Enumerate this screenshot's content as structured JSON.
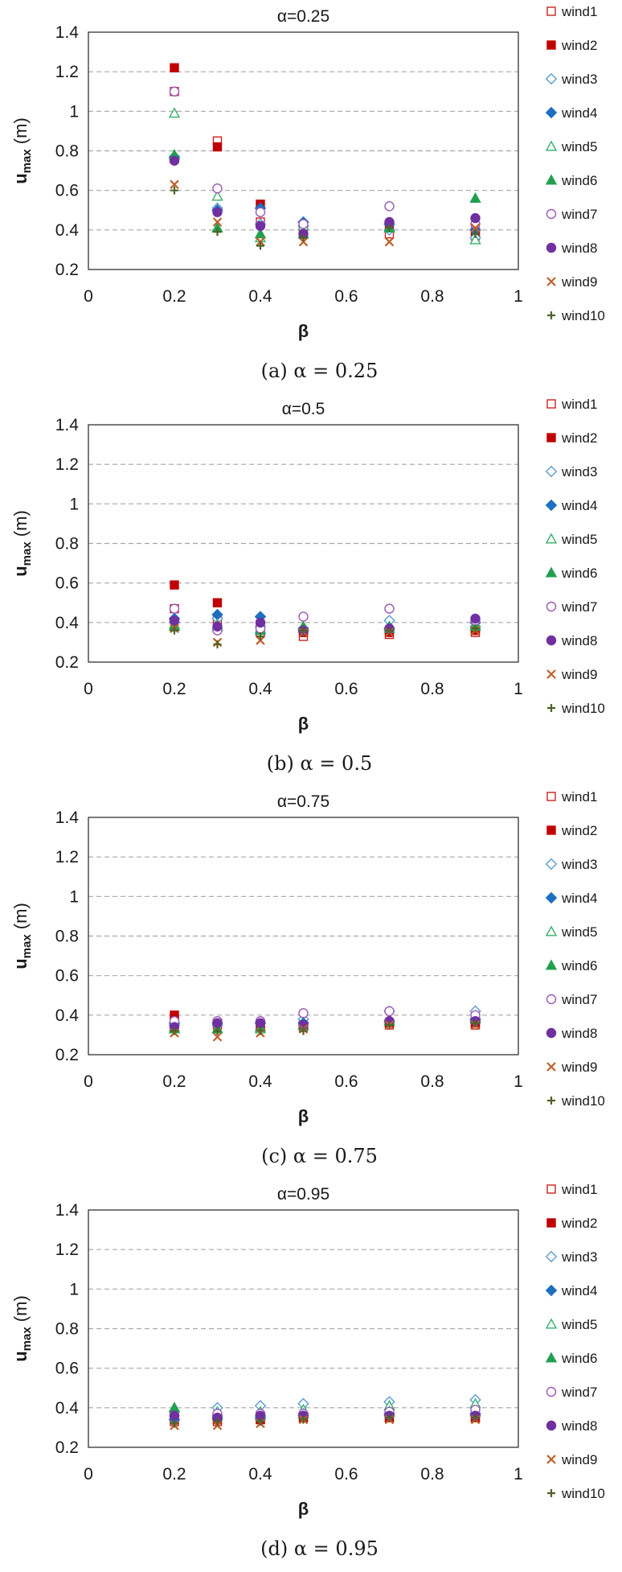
{
  "chart_data": [
    {
      "type": "scatter",
      "title": "α=0.25",
      "caption": "(a) α = 0.25",
      "xlabel": "β",
      "ylabel": "u",
      "ylabel_sub": "max",
      "ylabel_unit": " (m)",
      "xlim": [
        0,
        1
      ],
      "ylim": [
        0.2,
        1.4
      ],
      "xticks": [
        0,
        0.2,
        0.4,
        0.6,
        0.8,
        1
      ],
      "xtick_labels": [
        "0",
        "0.2",
        "0.4",
        "0.6",
        "0.8",
        "1"
      ],
      "yticks": [
        0.2,
        0.4,
        0.6,
        0.8,
        1.0,
        1.2,
        1.4
      ],
      "ytick_labels": [
        "0.2",
        "0.4",
        "0.6",
        "0.8",
        "1",
        "1.2",
        "1.4"
      ],
      "x": [
        0.2,
        0.3,
        0.4,
        0.5,
        0.7,
        0.9
      ],
      "series": [
        {
          "name": "wind1",
          "values": [
            1.1,
            0.85,
            0.44,
            0.4,
            0.38,
            0.37
          ]
        },
        {
          "name": "wind2",
          "values": [
            1.22,
            0.82,
            0.53,
            0.42,
            0.42,
            0.39
          ]
        },
        {
          "name": "wind3",
          "values": [
            0.76,
            0.51,
            0.43,
            0.42,
            0.4,
            0.36
          ]
        },
        {
          "name": "wind4",
          "values": [
            0.77,
            0.5,
            0.51,
            0.44,
            0.43,
            0.4
          ]
        },
        {
          "name": "wind5",
          "values": [
            0.99,
            0.57,
            0.36,
            0.42,
            0.41,
            0.35
          ]
        },
        {
          "name": "wind6",
          "values": [
            0.78,
            0.41,
            0.38,
            0.38,
            0.41,
            0.56
          ]
        },
        {
          "name": "wind7",
          "values": [
            1.1,
            0.61,
            0.49,
            0.43,
            0.52,
            0.43
          ]
        },
        {
          "name": "wind8",
          "values": [
            0.75,
            0.49,
            0.42,
            0.38,
            0.44,
            0.46
          ]
        },
        {
          "name": "wind9",
          "values": [
            0.63,
            0.44,
            0.34,
            0.34,
            0.34,
            0.41
          ]
        },
        {
          "name": "wind10",
          "values": [
            0.6,
            0.39,
            0.32,
            0.36,
            0.41,
            0.38
          ]
        }
      ]
    },
    {
      "type": "scatter",
      "title": "α=0.5",
      "caption": "(b) α = 0.5",
      "xlabel": "β",
      "ylabel": "u",
      "ylabel_sub": "max",
      "ylabel_unit": " (m)",
      "xlim": [
        0,
        1
      ],
      "ylim": [
        0.2,
        1.4
      ],
      "xticks": [
        0,
        0.2,
        0.4,
        0.6,
        0.8,
        1
      ],
      "xtick_labels": [
        "0",
        "0.2",
        "0.4",
        "0.6",
        "0.8",
        "1"
      ],
      "yticks": [
        0.2,
        0.4,
        0.6,
        0.8,
        1.0,
        1.2,
        1.4
      ],
      "ytick_labels": [
        "0.2",
        "0.4",
        "0.6",
        "0.8",
        "1",
        "1.2",
        "1.4"
      ],
      "x": [
        0.2,
        0.3,
        0.4,
        0.5,
        0.7,
        0.9
      ],
      "series": [
        {
          "name": "wind1",
          "values": [
            0.47,
            0.41,
            0.35,
            0.33,
            0.34,
            0.35
          ]
        },
        {
          "name": "wind2",
          "values": [
            0.59,
            0.5,
            0.39,
            0.35,
            0.35,
            0.36
          ]
        },
        {
          "name": "wind3",
          "values": [
            0.4,
            0.42,
            0.38,
            0.36,
            0.41,
            0.38
          ]
        },
        {
          "name": "wind4",
          "values": [
            0.42,
            0.44,
            0.43,
            0.37,
            0.37,
            0.4
          ]
        },
        {
          "name": "wind5",
          "values": [
            0.39,
            0.39,
            0.37,
            0.37,
            0.37,
            0.39
          ]
        },
        {
          "name": "wind6",
          "values": [
            0.38,
            0.38,
            0.36,
            0.38,
            0.38,
            0.38
          ]
        },
        {
          "name": "wind7",
          "values": [
            0.47,
            0.36,
            0.37,
            0.43,
            0.47,
            0.41
          ]
        },
        {
          "name": "wind8",
          "values": [
            0.41,
            0.38,
            0.4,
            0.36,
            0.37,
            0.42
          ]
        },
        {
          "name": "wind9",
          "values": [
            0.37,
            0.3,
            0.31,
            0.35,
            0.35,
            0.36
          ]
        },
        {
          "name": "wind10",
          "values": [
            0.36,
            0.29,
            0.33,
            0.36,
            0.36,
            0.37
          ]
        }
      ]
    },
    {
      "type": "scatter",
      "title": "α=0.75",
      "caption": "(c) α = 0.75",
      "xlabel": "β",
      "ylabel": "u",
      "ylabel_sub": "max",
      "ylabel_unit": " (m)",
      "xlim": [
        0,
        1
      ],
      "ylim": [
        0.2,
        1.4
      ],
      "xticks": [
        0,
        0.2,
        0.4,
        0.6,
        0.8,
        1
      ],
      "xtick_labels": [
        "0",
        "0.2",
        "0.4",
        "0.6",
        "0.8",
        "1"
      ],
      "yticks": [
        0.2,
        0.4,
        0.6,
        0.8,
        1.0,
        1.2,
        1.4
      ],
      "ytick_labels": [
        "0.2",
        "0.4",
        "0.6",
        "0.8",
        "1",
        "1.2",
        "1.4"
      ],
      "x": [
        0.2,
        0.3,
        0.4,
        0.5,
        0.7,
        0.9
      ],
      "series": [
        {
          "name": "wind1",
          "values": [
            0.38,
            0.35,
            0.34,
            0.34,
            0.35,
            0.35
          ]
        },
        {
          "name": "wind2",
          "values": [
            0.4,
            0.36,
            0.35,
            0.35,
            0.36,
            0.36
          ]
        },
        {
          "name": "wind3",
          "values": [
            0.35,
            0.35,
            0.36,
            0.38,
            0.42,
            0.42
          ]
        },
        {
          "name": "wind4",
          "values": [
            0.36,
            0.36,
            0.36,
            0.36,
            0.37,
            0.38
          ]
        },
        {
          "name": "wind5",
          "values": [
            0.34,
            0.33,
            0.33,
            0.35,
            0.38,
            0.39
          ]
        },
        {
          "name": "wind6",
          "values": [
            0.33,
            0.33,
            0.34,
            0.35,
            0.37,
            0.38
          ]
        },
        {
          "name": "wind7",
          "values": [
            0.37,
            0.37,
            0.37,
            0.41,
            0.42,
            0.4
          ]
        },
        {
          "name": "wind8",
          "values": [
            0.34,
            0.36,
            0.36,
            0.35,
            0.37,
            0.37
          ]
        },
        {
          "name": "wind9",
          "values": [
            0.31,
            0.29,
            0.31,
            0.33,
            0.35,
            0.35
          ]
        },
        {
          "name": "wind10",
          "values": [
            0.32,
            0.32,
            0.32,
            0.32,
            0.35,
            0.36
          ]
        }
      ]
    },
    {
      "type": "scatter",
      "title": "α=0.95",
      "caption": "(d) α = 0.95",
      "xlabel": "β",
      "ylabel": "u",
      "ylabel_sub": "max",
      "ylabel_unit": " (m)",
      "xlim": [
        0,
        1
      ],
      "ylim": [
        0.2,
        1.4
      ],
      "xticks": [
        0,
        0.2,
        0.4,
        0.6,
        0.8,
        1
      ],
      "xtick_labels": [
        "0",
        "0.2",
        "0.4",
        "0.6",
        "0.8",
        "1"
      ],
      "yticks": [
        0.2,
        0.4,
        0.6,
        0.8,
        1.0,
        1.2,
        1.4
      ],
      "ytick_labels": [
        "0.2",
        "0.4",
        "0.6",
        "0.8",
        "1",
        "1.2",
        "1.4"
      ],
      "x": [
        0.2,
        0.3,
        0.4,
        0.5,
        0.7,
        0.9
      ],
      "series": [
        {
          "name": "wind1",
          "values": [
            0.33,
            0.33,
            0.34,
            0.35,
            0.35,
            0.35
          ]
        },
        {
          "name": "wind2",
          "values": [
            0.34,
            0.34,
            0.34,
            0.35,
            0.35,
            0.35
          ]
        },
        {
          "name": "wind3",
          "values": [
            0.38,
            0.4,
            0.41,
            0.42,
            0.43,
            0.44
          ]
        },
        {
          "name": "wind4",
          "values": [
            0.34,
            0.35,
            0.35,
            0.36,
            0.37,
            0.37
          ]
        },
        {
          "name": "wind5",
          "values": [
            0.4,
            0.38,
            0.38,
            0.39,
            0.41,
            0.42
          ]
        },
        {
          "name": "wind6",
          "values": [
            0.4,
            0.36,
            0.36,
            0.37,
            0.38,
            0.38
          ]
        },
        {
          "name": "wind7",
          "values": [
            0.36,
            0.37,
            0.37,
            0.37,
            0.38,
            0.39
          ]
        },
        {
          "name": "wind8",
          "values": [
            0.36,
            0.35,
            0.36,
            0.36,
            0.36,
            0.36
          ]
        },
        {
          "name": "wind9",
          "values": [
            0.31,
            0.31,
            0.32,
            0.34,
            0.34,
            0.34
          ]
        },
        {
          "name": "wind10",
          "values": [
            0.32,
            0.33,
            0.33,
            0.34,
            0.35,
            0.35
          ]
        }
      ]
    }
  ],
  "styles": {
    "wind1": {
      "shape": "square",
      "fill": false,
      "color": "#cc2222"
    },
    "wind2": {
      "shape": "square",
      "fill": true,
      "color": "#c00000"
    },
    "wind3": {
      "shape": "diamond",
      "fill": false,
      "color": "#5b9bd5"
    },
    "wind4": {
      "shape": "diamond",
      "fill": true,
      "color": "#1f6fc0"
    },
    "wind5": {
      "shape": "triangle",
      "fill": false,
      "color": "#33b26a"
    },
    "wind6": {
      "shape": "triangle",
      "fill": true,
      "color": "#22a050"
    },
    "wind7": {
      "shape": "circle",
      "fill": false,
      "color": "#9b59b6"
    },
    "wind8": {
      "shape": "circle",
      "fill": true,
      "color": "#7030a0"
    },
    "wind9": {
      "shape": "x",
      "fill": false,
      "color": "#c0602a"
    },
    "wind10": {
      "shape": "plus",
      "fill": false,
      "color": "#4f6228"
    }
  },
  "colors": {
    "grid": "#a6a6a6",
    "axis": "#333333"
  }
}
